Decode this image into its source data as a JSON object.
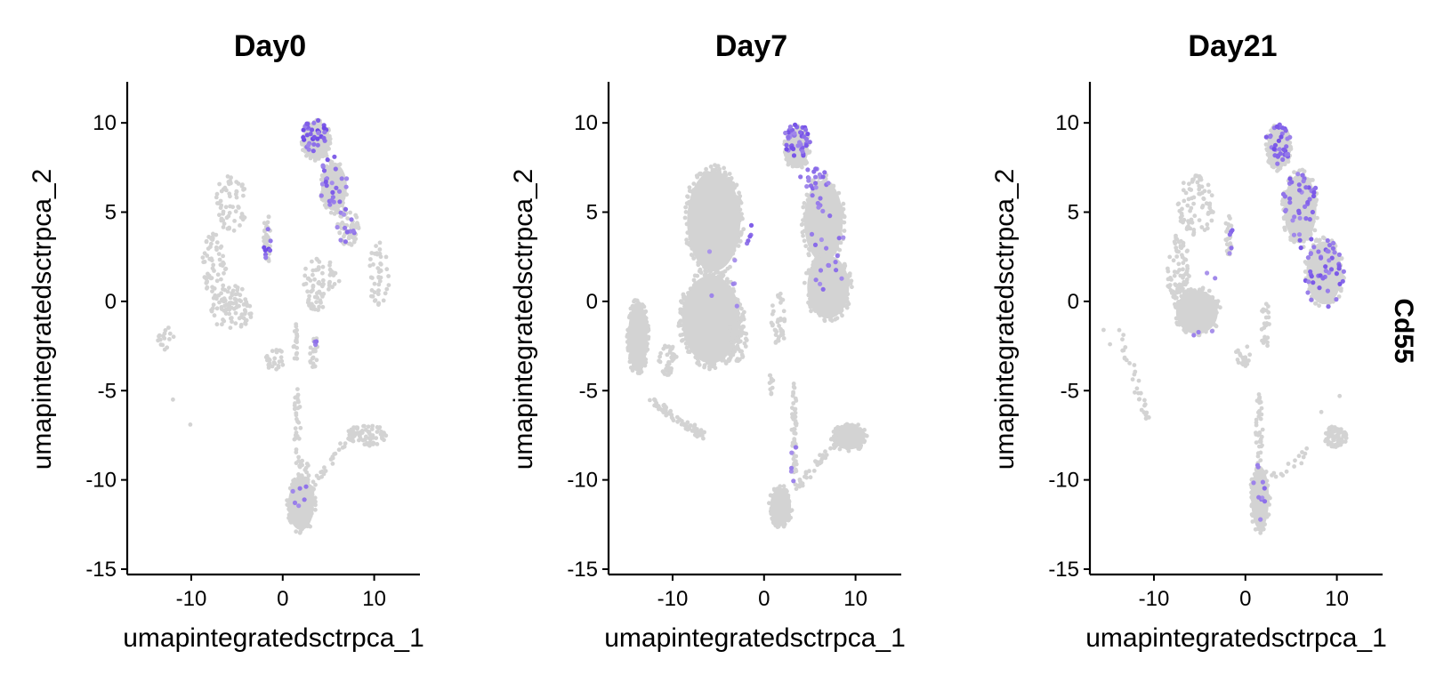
{
  "chart_data": {
    "type": "scatter",
    "feature_label": "Cd55",
    "colors": {
      "background_cells": "#d3d3d3",
      "low": "#b8a6ec",
      "high": "#5a2fe6",
      "axis": "#000000"
    },
    "legend": "none",
    "grid": false,
    "panels": [
      {
        "title": "Day0",
        "xlabel": "umapintegratedsctrpca_1",
        "ylabel": "umapintegratedsctrpca_2",
        "xlim": [
          -17,
          15
        ],
        "ylim": [
          -15.3,
          12.3
        ],
        "xticks": [
          -10,
          0,
          10
        ],
        "yticks": [
          -15,
          -10,
          -5,
          0,
          5,
          10
        ],
        "xtick_labels": [
          "-10",
          "0",
          "10"
        ],
        "ytick_labels": [
          "-15",
          "-10",
          "-5",
          "0",
          "5",
          "10"
        ],
        "clusters": [
          {
            "shape": "ellipse",
            "center": [
              3.7,
              9.0
            ],
            "radii": [
              1.7,
              1.2
            ],
            "n": 120,
            "density": 1.0
          },
          {
            "shape": "ellipse",
            "center": [
              5.6,
              6.4
            ],
            "radii": [
              1.6,
              1.5
            ],
            "n": 110,
            "density": 1.0
          },
          {
            "shape": "ellipse",
            "center": [
              7.2,
              4.2
            ],
            "radii": [
              1.2,
              1.1
            ],
            "n": 60,
            "density": 0.8
          },
          {
            "shape": "ellipse",
            "center": [
              -5.6,
              5.5
            ],
            "radii": [
              1.8,
              1.6
            ],
            "n": 60,
            "density": 0.5
          },
          {
            "shape": "ellipse",
            "center": [
              -7.5,
              2.0
            ],
            "radii": [
              1.3,
              1.8
            ],
            "n": 60,
            "density": 0.6
          },
          {
            "shape": "ellipse",
            "center": [
              -5.6,
              -0.4
            ],
            "radii": [
              2.3,
              1.3
            ],
            "n": 90,
            "density": 0.8
          },
          {
            "shape": "ellipse",
            "center": [
              -1.7,
              3.5
            ],
            "radii": [
              0.4,
              1.4
            ],
            "n": 35,
            "density": 0.7
          },
          {
            "shape": "ellipse",
            "center": [
              4.2,
              1.2
            ],
            "radii": [
              2.0,
              1.4
            ],
            "n": 50,
            "density": 0.5
          },
          {
            "shape": "ellipse",
            "center": [
              10.5,
              1.5
            ],
            "radii": [
              1.2,
              1.8
            ],
            "n": 45,
            "density": 0.6
          },
          {
            "shape": "ellipse",
            "center": [
              3.6,
              0.0
            ],
            "radii": [
              1.0,
              0.6
            ],
            "n": 25,
            "density": 0.8
          },
          {
            "shape": "ellipse",
            "center": [
              1.4,
              -2.5
            ],
            "radii": [
              0.3,
              1.3
            ],
            "n": 20,
            "density": 0.8
          },
          {
            "shape": "ellipse",
            "center": [
              3.4,
              -2.8
            ],
            "radii": [
              0.5,
              0.9
            ],
            "n": 25,
            "density": 0.9
          },
          {
            "shape": "ellipse",
            "center": [
              -0.7,
              -3.3
            ],
            "radii": [
              1.2,
              0.6
            ],
            "n": 25,
            "density": 0.8
          },
          {
            "shape": "ellipse",
            "center": [
              1.6,
              -7.0
            ],
            "radii": [
              0.35,
              2.2
            ],
            "n": 30,
            "density": 0.9
          },
          {
            "shape": "ellipse",
            "center": [
              2.0,
              -11.4
            ],
            "radii": [
              1.6,
              1.6
            ],
            "n": 180,
            "density": 1.0
          },
          {
            "shape": "ellipse",
            "center": [
              2.3,
              -9.6
            ],
            "radii": [
              0.6,
              0.8
            ],
            "n": 30,
            "density": 1.0
          },
          {
            "shape": "ellipse",
            "center": [
              9.2,
              -7.5
            ],
            "radii": [
              2.2,
              0.6
            ],
            "n": 70,
            "density": 0.9
          },
          {
            "shape": "line",
            "from": [
              3.0,
              -10.5
            ],
            "to": [
              8.0,
              -7.2
            ],
            "n": 30,
            "spread": 0.25
          },
          {
            "shape": "ellipse",
            "center": [
              -12.8,
              -2.0
            ],
            "radii": [
              0.9,
              0.6
            ],
            "n": 15,
            "density": 0.7
          },
          {
            "shape": "points",
            "xy": [
              [
                -12,
                -5.5
              ],
              [
                -10.1,
                -6.9
              ],
              [
                -12.9,
                -2.7
              ]
            ]
          }
        ],
        "expressing": [
          {
            "center": [
              3.5,
              9.3
            ],
            "radii": [
              1.4,
              0.9
            ],
            "n": 35,
            "strength": 0.55
          },
          {
            "center": [
              5.5,
              6.7
            ],
            "radii": [
              1.6,
              1.5
            ],
            "n": 25,
            "strength": 0.45
          },
          {
            "center": [
              7.0,
              4.2
            ],
            "radii": [
              1.2,
              1.0
            ],
            "n": 12,
            "strength": 0.35
          },
          {
            "center": [
              -1.7,
              3.4
            ],
            "radii": [
              0.4,
              1.2
            ],
            "n": 8,
            "strength": 0.55
          },
          {
            "center": [
              3.6,
              -2.6
            ],
            "radii": [
              0.4,
              0.6
            ],
            "n": 3,
            "strength": 0.4
          },
          {
            "center": [
              2.0,
              -11.0
            ],
            "radii": [
              1.3,
              1.5
            ],
            "n": 6,
            "strength": 0.3
          }
        ]
      },
      {
        "title": "Day7",
        "xlabel": "umapintegratedsctrpca_1",
        "ylabel": "umapintegratedsctrpca_2",
        "xlim": [
          -17,
          15
        ],
        "ylim": [
          -15.3,
          12.3
        ],
        "xticks": [
          -10,
          0,
          10
        ],
        "yticks": [
          -15,
          -10,
          -5,
          0,
          5,
          10
        ],
        "xtick_labels": [
          "-10",
          "0",
          "10"
        ],
        "ytick_labels": [
          "-15",
          "-10",
          "-5",
          "0",
          "5",
          "10"
        ],
        "clusters": [
          {
            "shape": "ellipse",
            "center": [
              -5.5,
              4.5
            ],
            "radii": [
              3.3,
              3.2
            ],
            "n": 420,
            "density": 1.0
          },
          {
            "shape": "ellipse",
            "center": [
              -5.8,
              -1.0
            ],
            "radii": [
              3.6,
              2.8
            ],
            "n": 420,
            "density": 1.0
          },
          {
            "shape": "ellipse",
            "center": [
              -2.8,
              -1.8
            ],
            "radii": [
              1.0,
              1.6
            ],
            "n": 70,
            "density": 1.0
          },
          {
            "shape": "ellipse",
            "center": [
              3.6,
              8.6
            ],
            "radii": [
              1.4,
              1.3
            ],
            "n": 140,
            "density": 1.0
          },
          {
            "shape": "ellipse",
            "center": [
              6.5,
              4.5
            ],
            "radii": [
              2.4,
              2.6
            ],
            "n": 260,
            "density": 1.0
          },
          {
            "shape": "ellipse",
            "center": [
              7.0,
              0.8
            ],
            "radii": [
              2.6,
              2.0
            ],
            "n": 240,
            "density": 1.0
          },
          {
            "shape": "ellipse",
            "center": [
              -13.8,
              -2.0
            ],
            "radii": [
              1.2,
              2.2
            ],
            "n": 170,
            "density": 1.0
          },
          {
            "shape": "ellipse",
            "center": [
              -10.5,
              -3.3
            ],
            "radii": [
              1.0,
              0.9
            ],
            "n": 40,
            "density": 1.0
          },
          {
            "shape": "line",
            "from": [
              -12.5,
              -5.5
            ],
            "to": [
              -6.5,
              -7.6
            ],
            "n": 70,
            "spread": 0.25
          },
          {
            "shape": "ellipse",
            "center": [
              1.6,
              -1.0
            ],
            "radii": [
              0.8,
              1.6
            ],
            "n": 40,
            "density": 0.6
          },
          {
            "shape": "ellipse",
            "center": [
              3.3,
              -7.5
            ],
            "radii": [
              0.3,
              3.0
            ],
            "n": 50,
            "density": 0.9
          },
          {
            "shape": "ellipse",
            "center": [
              1.8,
              -11.5
            ],
            "radii": [
              1.3,
              1.2
            ],
            "n": 110,
            "density": 1.0
          },
          {
            "shape": "ellipse",
            "center": [
              9.3,
              -7.6
            ],
            "radii": [
              2.0,
              0.8
            ],
            "n": 110,
            "density": 1.0
          },
          {
            "shape": "line",
            "from": [
              3.5,
              -10.5
            ],
            "to": [
              8.5,
              -7.3
            ],
            "n": 40,
            "spread": 0.25
          },
          {
            "shape": "ellipse",
            "center": [
              0.8,
              -4.5
            ],
            "radii": [
              0.2,
              0.8
            ],
            "n": 10,
            "density": 0.7
          }
        ],
        "expressing": [
          {
            "center": [
              3.6,
              9.0
            ],
            "radii": [
              1.5,
              1.0
            ],
            "n": 45,
            "strength": 0.5
          },
          {
            "center": [
              5.5,
              6.6
            ],
            "radii": [
              1.6,
              1.4
            ],
            "n": 25,
            "strength": 0.4
          },
          {
            "center": [
              7.0,
              3.0
            ],
            "radii": [
              2.2,
              2.4
            ],
            "n": 18,
            "strength": 0.35
          },
          {
            "center": [
              -1.6,
              3.6
            ],
            "radii": [
              0.4,
              0.8
            ],
            "n": 5,
            "strength": 0.45
          },
          {
            "center": [
              -5.0,
              1.0
            ],
            "radii": [
              3.0,
              2.5
            ],
            "n": 6,
            "strength": 0.25
          },
          {
            "center": [
              3.3,
              -9.0
            ],
            "radii": [
              0.4,
              1.5
            ],
            "n": 5,
            "strength": 0.3
          }
        ]
      },
      {
        "title": "Day21",
        "xlabel": "umapintegratedsctrpca_1",
        "ylabel": "umapintegratedsctrpca_2",
        "xlim": [
          -17,
          15
        ],
        "ylim": [
          -15.3,
          12.3
        ],
        "xticks": [
          -10,
          0,
          10
        ],
        "yticks": [
          -15,
          -10,
          -5,
          0,
          5,
          10
        ],
        "xtick_labels": [
          "-10",
          "0",
          "10"
        ],
        "ytick_labels": [
          "-15",
          "-10",
          "-5",
          "0",
          "5",
          "10"
        ],
        "clusters": [
          {
            "shape": "ellipse",
            "center": [
              3.6,
              8.6
            ],
            "radii": [
              1.4,
              1.3
            ],
            "n": 130,
            "density": 1.0
          },
          {
            "shape": "ellipse",
            "center": [
              6.0,
              5.2
            ],
            "radii": [
              2.0,
              2.2
            ],
            "n": 170,
            "density": 1.0
          },
          {
            "shape": "ellipse",
            "center": [
              8.6,
              1.6
            ],
            "radii": [
              2.2,
              2.0
            ],
            "n": 160,
            "density": 1.0
          },
          {
            "shape": "ellipse",
            "center": [
              -5.4,
              5.4
            ],
            "radii": [
              2.0,
              1.7
            ],
            "n": 80,
            "density": 0.6
          },
          {
            "shape": "ellipse",
            "center": [
              -7.4,
              1.8
            ],
            "radii": [
              1.3,
              1.9
            ],
            "n": 80,
            "density": 0.7
          },
          {
            "shape": "ellipse",
            "center": [
              -5.3,
              -0.6
            ],
            "radii": [
              2.6,
              1.4
            ],
            "n": 150,
            "density": 0.9
          },
          {
            "shape": "ellipse",
            "center": [
              -1.8,
              3.8
            ],
            "radii": [
              0.4,
              1.2
            ],
            "n": 25,
            "density": 0.7
          },
          {
            "shape": "ellipse",
            "center": [
              2.2,
              -1.5
            ],
            "radii": [
              0.5,
              1.5
            ],
            "n": 25,
            "density": 0.8
          },
          {
            "shape": "ellipse",
            "center": [
              -0.3,
              -3.0
            ],
            "radii": [
              0.8,
              0.7
            ],
            "n": 20,
            "density": 0.7
          },
          {
            "shape": "ellipse",
            "center": [
              1.5,
              -7.2
            ],
            "radii": [
              0.4,
              2.0
            ],
            "n": 35,
            "density": 0.8
          },
          {
            "shape": "ellipse",
            "center": [
              1.6,
              -11.0
            ],
            "radii": [
              1.1,
              2.0
            ],
            "n": 140,
            "density": 1.0
          },
          {
            "shape": "ellipse",
            "center": [
              9.8,
              -7.6
            ],
            "radii": [
              1.3,
              0.6
            ],
            "n": 70,
            "density": 1.0
          },
          {
            "shape": "line",
            "from": [
              3.0,
              -10.0
            ],
            "to": [
              7.0,
              -8.4
            ],
            "n": 15,
            "spread": 0.3
          },
          {
            "shape": "line",
            "from": [
              -14.0,
              -1.5
            ],
            "to": [
              -10.5,
              -6.8
            ],
            "n": 30,
            "spread": 0.35
          },
          {
            "shape": "points",
            "xy": [
              [
                -15.5,
                -1.6
              ],
              [
                -14.8,
                -2.4
              ],
              [
                -13.2,
                -3.2
              ],
              [
                -12.1,
                -5.1
              ],
              [
                10.3,
                -5.3
              ],
              [
                8.3,
                -6.2
              ]
            ]
          }
        ],
        "expressing": [
          {
            "center": [
              3.6,
              8.8
            ],
            "radii": [
              1.4,
              1.2
            ],
            "n": 35,
            "strength": 0.5
          },
          {
            "center": [
              6.0,
              5.2
            ],
            "radii": [
              2.0,
              2.2
            ],
            "n": 40,
            "strength": 0.45
          },
          {
            "center": [
              8.6,
              1.5
            ],
            "radii": [
              2.2,
              2.0
            ],
            "n": 45,
            "strength": 0.45
          },
          {
            "center": [
              -1.8,
              3.6
            ],
            "radii": [
              0.4,
              1.0
            ],
            "n": 5,
            "strength": 0.4
          },
          {
            "center": [
              1.5,
              -10.5
            ],
            "radii": [
              1.0,
              1.8
            ],
            "n": 10,
            "strength": 0.35
          },
          {
            "center": [
              -5.0,
              0.0
            ],
            "radii": [
              2.5,
              2.0
            ],
            "n": 5,
            "strength": 0.25
          }
        ]
      }
    ]
  }
}
